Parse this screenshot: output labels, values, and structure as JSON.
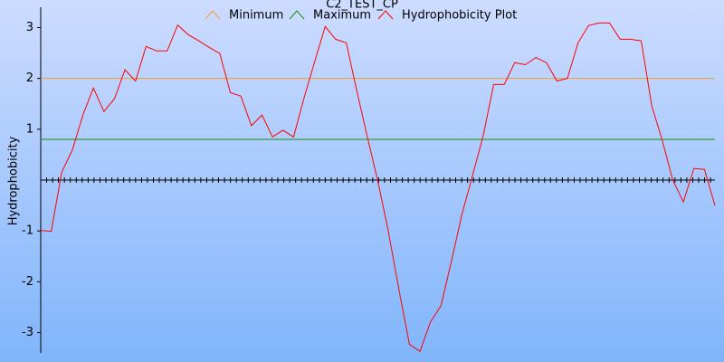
{
  "chart_data": {
    "type": "line",
    "title": "C2_TEST_CP",
    "y_label": "Hydrophobicity",
    "xlim": [
      0,
      64
    ],
    "ylim": [
      -3.4,
      3.4
    ],
    "yticks": [
      -3,
      -2,
      -1,
      1,
      2,
      3
    ],
    "series": [
      {
        "name": "Minimum",
        "color": "#f0a030",
        "value": 2
      },
      {
        "name": "Maximum",
        "color": "#109010",
        "value": 0.8
      },
      {
        "name": "Hydrophobicity Plot",
        "color": "#ff0000",
        "values": [
          -0.99,
          -1.01,
          0.16,
          0.59,
          1.28,
          1.81,
          1.35,
          1.6,
          2.17,
          1.95,
          2.63,
          2.54,
          2.54,
          3.05,
          2.86,
          2.74,
          2.61,
          2.49,
          1.72,
          1.65,
          1.07,
          1.28,
          0.85,
          0.98,
          0.85,
          1.62,
          2.33,
          3.02,
          2.77,
          2.7,
          1.76,
          0.85,
          -0.02,
          -1.01,
          -2.15,
          -3.23,
          -3.37,
          -2.79,
          -2.47,
          -1.58,
          -0.66,
          0.1,
          0.87,
          1.88,
          1.88,
          2.31,
          2.27,
          2.41,
          2.31,
          1.95,
          2.0,
          2.7,
          3.04,
          3.09,
          3.09,
          2.77,
          2.77,
          2.74,
          1.46,
          0.78,
          0.0,
          -0.43,
          0.23,
          0.21,
          -0.5
        ]
      }
    ]
  }
}
